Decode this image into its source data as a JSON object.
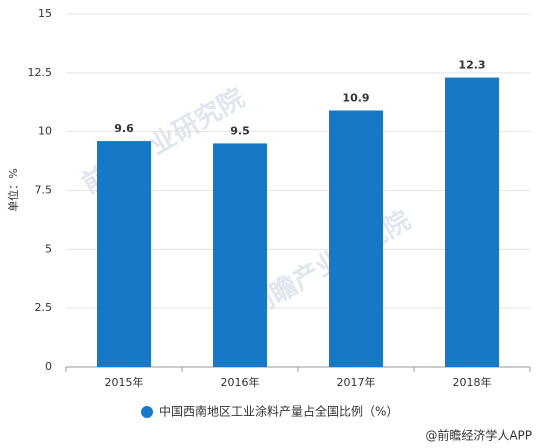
{
  "chart_data": {
    "type": "bar",
    "y_label": "单位：%",
    "categories": [
      "2015年",
      "2016年",
      "2017年",
      "2018年"
    ],
    "series": [
      {
        "name": "中国西南地区工业涂料产量占全国比例（%）",
        "color": "#1878c8",
        "values": [
          9.6,
          9.5,
          10.9,
          12.3
        ]
      }
    ],
    "ylim": [
      0,
      15
    ],
    "yticks": [
      0,
      2.5,
      5,
      7.5,
      10,
      12.5,
      15
    ],
    "grid": true,
    "legend": "bottom",
    "watermark": "前瞻产业研究院",
    "source": "@前瞻经济学人APP"
  }
}
